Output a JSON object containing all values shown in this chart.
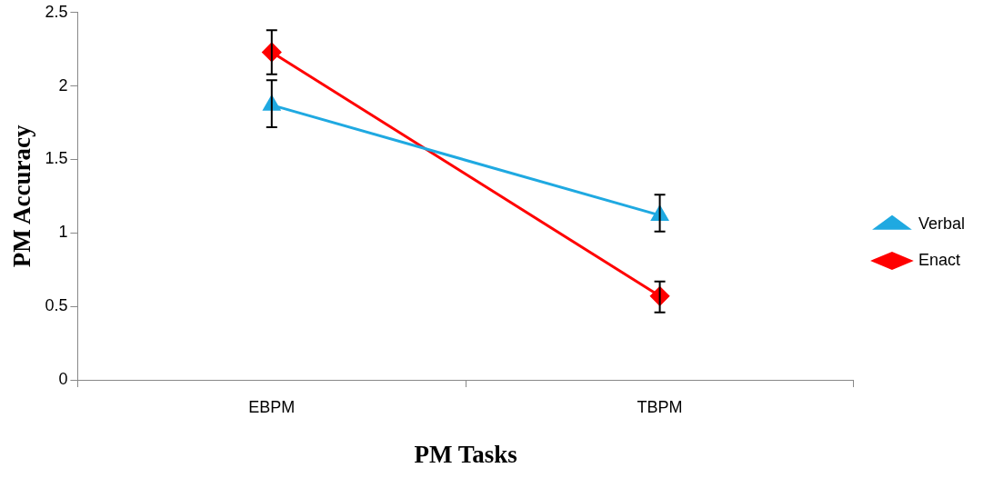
{
  "chart_data": {
    "type": "line",
    "xlabel": "PM Tasks",
    "ylabel": "PM Accuracy",
    "categories": [
      "EBPM",
      "TBPM"
    ],
    "series": [
      {
        "name": "Verbal",
        "color": "#1fa9e1",
        "values": [
          1.87,
          1.12
        ],
        "marker": "triangle",
        "errors": [
          [
            1.72,
            2.04
          ],
          [
            1.01,
            1.26
          ]
        ]
      },
      {
        "name": "Enact",
        "color": "#ff0000",
        "values": [
          2.23,
          0.57
        ],
        "marker": "diamond",
        "errors": [
          [
            2.08,
            2.38
          ],
          [
            0.46,
            0.67
          ]
        ]
      }
    ],
    "ylim": [
      0,
      2.5
    ],
    "yticks": [
      0,
      0.5,
      1,
      1.5,
      2,
      2.5
    ],
    "grid": false,
    "legend": "right",
    "line_style": "solid"
  }
}
